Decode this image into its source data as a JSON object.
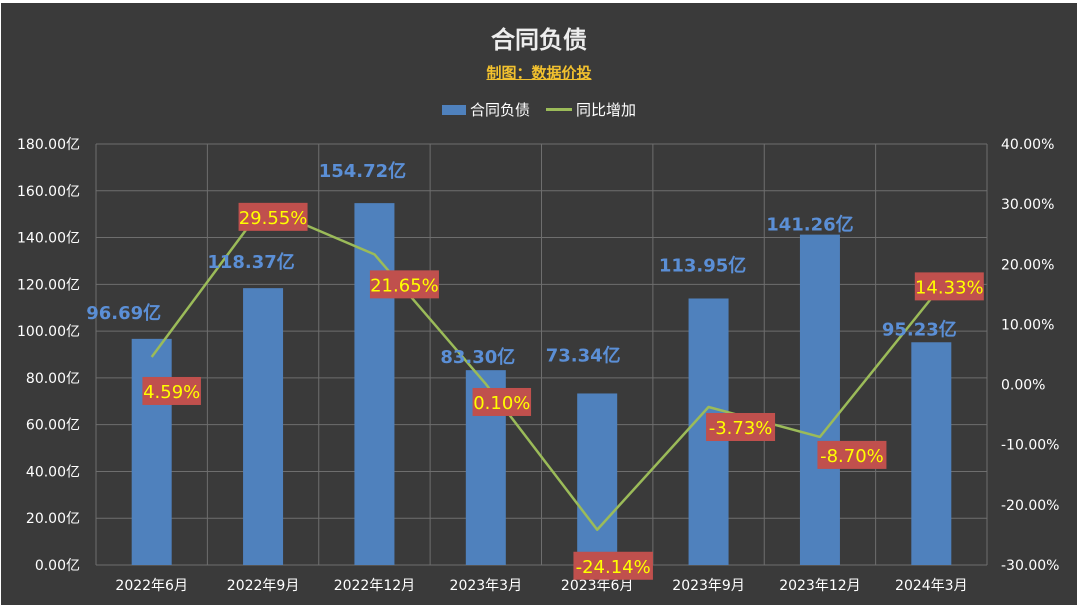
{
  "chart_data": {
    "type": "bar",
    "title": "合同负债",
    "subtitle": "制图：数据价投",
    "categories": [
      "2022年6月",
      "2022年9月",
      "2022年12月",
      "2023年3月",
      "2023年6月",
      "2023年9月",
      "2023年12月",
      "2024年3月"
    ],
    "series": [
      {
        "name": "合同负债",
        "type": "bar",
        "axis": "left",
        "values": [
          96.69,
          118.37,
          154.72,
          83.3,
          73.34,
          113.95,
          141.26,
          95.23
        ],
        "labels": [
          "96.69亿",
          "118.37亿",
          "154.72亿",
          "83.30亿",
          "73.34亿",
          "113.95亿",
          "141.26亿",
          "95.23亿"
        ],
        "color": "#4f81bd"
      },
      {
        "name": "同比增加",
        "type": "line",
        "axis": "right",
        "values": [
          4.59,
          29.55,
          21.65,
          0.1,
          -24.14,
          -3.73,
          -8.7,
          14.33
        ],
        "labels": [
          "4.59%",
          "29.55%",
          "21.65%",
          "0.10%",
          "-24.14%",
          "-3.73%",
          "-8.70%",
          "14.33%"
        ],
        "color": "#9bbb59"
      }
    ],
    "y_left": {
      "ylim": [
        0,
        180
      ],
      "ticks": [
        "0.00亿",
        "20.00亿",
        "40.00亿",
        "60.00亿",
        "80.00亿",
        "100.00亿",
        "120.00亿",
        "140.00亿",
        "160.00亿",
        "180.00亿"
      ]
    },
    "y_right": {
      "ylim": [
        -30,
        40
      ],
      "ticks": [
        "-30.00%",
        "-20.00%",
        "-10.00%",
        "0.00%",
        "10.00%",
        "20.00%",
        "30.00%",
        "40.00%"
      ]
    },
    "legend": "top",
    "grid": true,
    "colors": {
      "background": "#3a3a3a",
      "bar": "#4f81bd",
      "line": "#9bbb59",
      "bar_label": "#5b8fd6",
      "line_label_bg": "#c0504d",
      "line_label_text": "#ffff00",
      "subtitle": "#f2c12e",
      "grid": "#6e6e6e"
    }
  }
}
